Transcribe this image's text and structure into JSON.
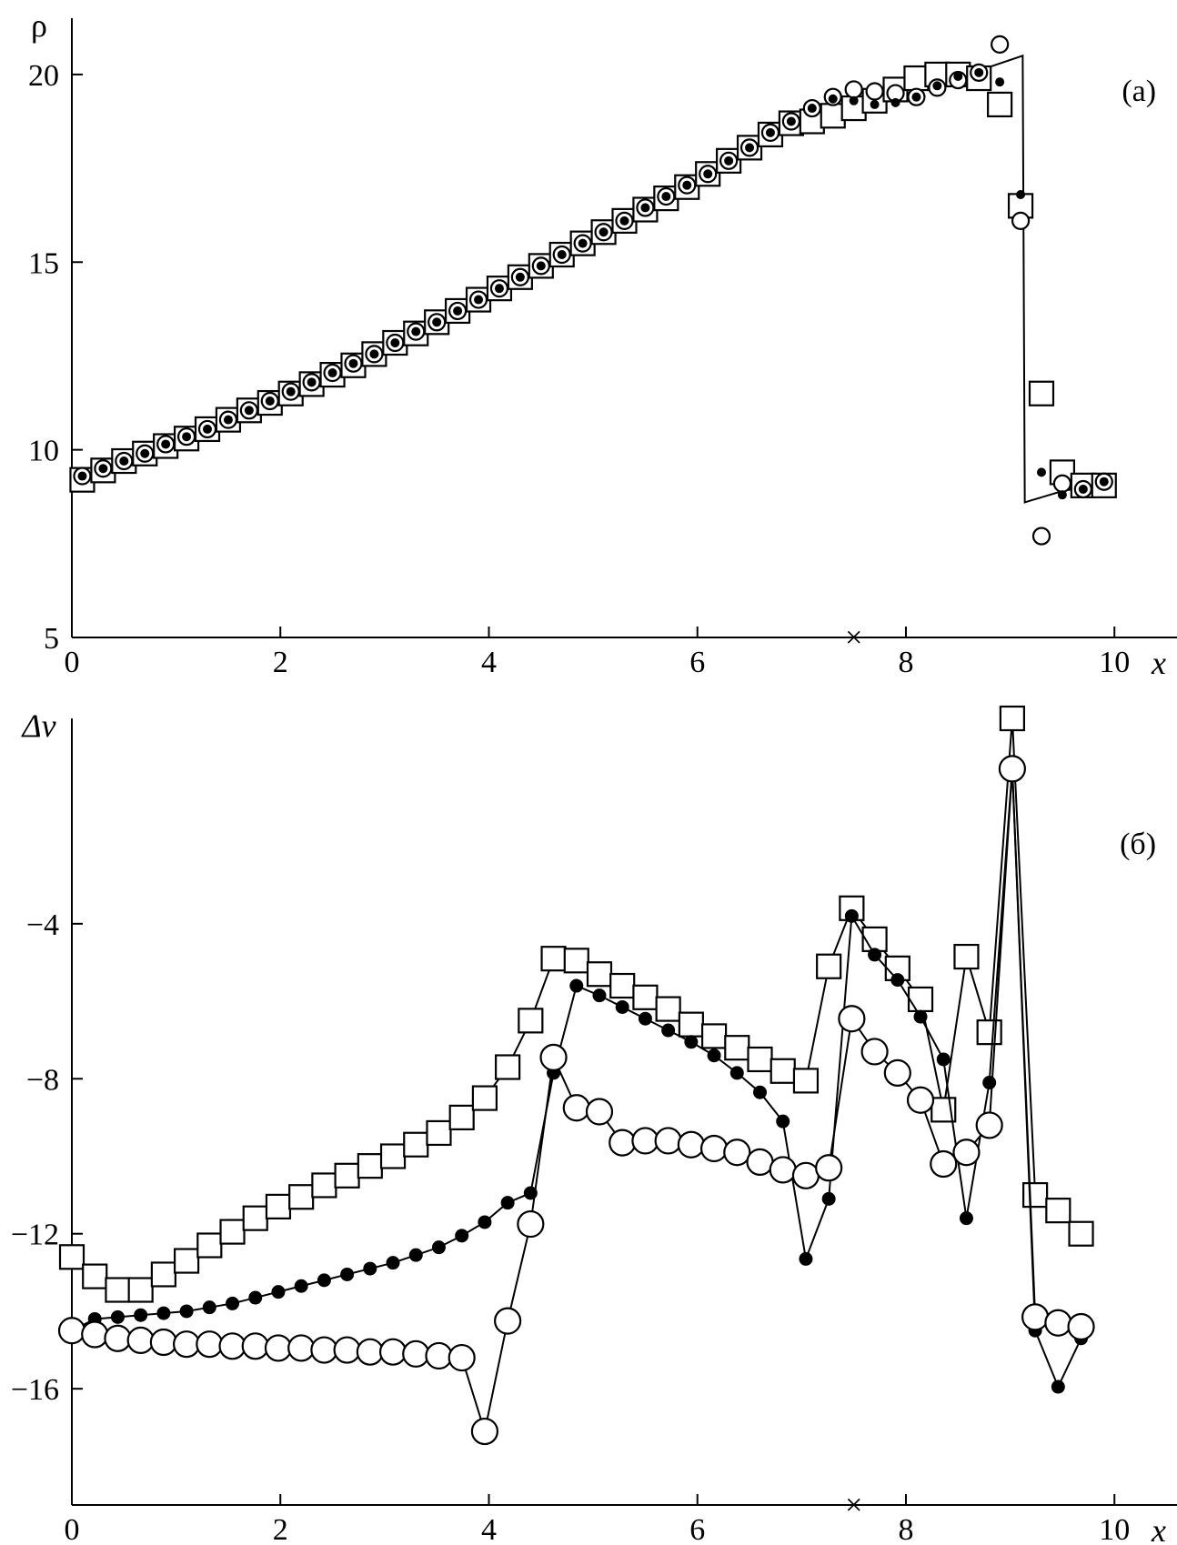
{
  "chart_data": [
    {
      "type": "line",
      "panel_label": "(а)",
      "ylabel": "ρ",
      "xlabel": "x",
      "xlim": [
        0,
        10.6
      ],
      "ylim": [
        5,
        21.5
      ],
      "xticks": [
        0,
        2,
        4,
        6,
        8,
        10
      ],
      "yticks": [
        5,
        10,
        15,
        20
      ],
      "xtick_labels": [
        "0",
        "2",
        "4",
        "6",
        "8",
        "10"
      ],
      "ytick_labels": [
        "5",
        "10",
        "15",
        "20"
      ],
      "marker_x": 7.5,
      "marker_x_symbol": "×",
      "grid": false,
      "series": [
        {
          "style": "line",
          "x": [
            0.1,
            1.0,
            2.0,
            3.0,
            4.0,
            5.0,
            6.0,
            7.0,
            7.5,
            8.0,
            8.5,
            8.8,
            9.12,
            9.14,
            9.2,
            9.5,
            9.9
          ],
          "y": [
            9.25,
            10.2,
            11.4,
            12.7,
            14.1,
            15.6,
            17.2,
            18.9,
            19.5,
            19.6,
            19.9,
            20.2,
            20.5,
            8.6,
            8.65,
            8.9,
            9.1
          ]
        },
        {
          "style": "square",
          "x": [
            0.1,
            0.3,
            0.5,
            0.7,
            0.9,
            1.1,
            1.3,
            1.5,
            1.7,
            1.9,
            2.1,
            2.3,
            2.5,
            2.7,
            2.9,
            3.1,
            3.3,
            3.5,
            3.7,
            3.9,
            4.1,
            4.3,
            4.5,
            4.7,
            4.9,
            5.1,
            5.3,
            5.5,
            5.7,
            5.9,
            6.1,
            6.3,
            6.5,
            6.7,
            6.9,
            7.1,
            7.3,
            7.5,
            7.7,
            7.9,
            8.1,
            8.3,
            8.5,
            8.7,
            8.9,
            9.1,
            9.3,
            9.5,
            9.7,
            9.9
          ],
          "y": [
            9.2,
            9.45,
            9.7,
            9.9,
            10.1,
            10.3,
            10.55,
            10.8,
            11.05,
            11.25,
            11.5,
            11.75,
            12.0,
            12.25,
            12.55,
            12.85,
            13.1,
            13.4,
            13.7,
            14.0,
            14.3,
            14.6,
            14.9,
            15.2,
            15.5,
            15.8,
            16.1,
            16.4,
            16.7,
            17.0,
            17.35,
            17.7,
            18.05,
            18.4,
            18.7,
            18.75,
            18.9,
            19.1,
            19.3,
            19.6,
            19.9,
            20.0,
            20.0,
            19.9,
            19.2,
            16.5,
            11.5,
            9.4,
            9.05,
            9.05
          ]
        },
        {
          "style": "circle",
          "x": [
            0.1,
            0.3,
            0.5,
            0.7,
            0.9,
            1.1,
            1.3,
            1.5,
            1.7,
            1.9,
            2.1,
            2.3,
            2.5,
            2.7,
            2.9,
            3.1,
            3.3,
            3.5,
            3.7,
            3.9,
            4.1,
            4.3,
            4.5,
            4.7,
            4.9,
            5.1,
            5.3,
            5.5,
            5.7,
            5.9,
            6.1,
            6.3,
            6.5,
            6.7,
            6.9,
            7.1,
            7.3,
            7.5,
            7.7,
            7.9,
            8.1,
            8.3,
            8.5,
            8.7,
            8.9,
            9.1,
            9.3,
            9.5,
            9.7,
            9.9
          ],
          "y": [
            9.3,
            9.5,
            9.7,
            9.9,
            10.15,
            10.35,
            10.55,
            10.8,
            11.05,
            11.3,
            11.55,
            11.8,
            12.05,
            12.3,
            12.55,
            12.85,
            13.15,
            13.4,
            13.7,
            14.0,
            14.3,
            14.6,
            14.9,
            15.2,
            15.5,
            15.8,
            16.1,
            16.45,
            16.75,
            17.05,
            17.35,
            17.7,
            18.05,
            18.45,
            18.75,
            19.1,
            19.4,
            19.6,
            19.55,
            19.5,
            19.4,
            19.65,
            19.85,
            20.05,
            20.8,
            16.1,
            7.7,
            9.1,
            8.95,
            9.15
          ]
        },
        {
          "style": "dot",
          "x": [
            0.1,
            0.3,
            0.5,
            0.7,
            0.9,
            1.1,
            1.3,
            1.5,
            1.7,
            1.9,
            2.1,
            2.3,
            2.5,
            2.7,
            2.9,
            3.1,
            3.3,
            3.5,
            3.7,
            3.9,
            4.1,
            4.3,
            4.5,
            4.7,
            4.9,
            5.1,
            5.3,
            5.5,
            5.7,
            5.9,
            6.1,
            6.3,
            6.5,
            6.7,
            6.9,
            7.1,
            7.3,
            7.5,
            7.7,
            7.9,
            8.1,
            8.3,
            8.5,
            8.7,
            8.9,
            9.1,
            9.3,
            9.5,
            9.7,
            9.9
          ],
          "y": [
            9.3,
            9.5,
            9.7,
            9.9,
            10.15,
            10.35,
            10.55,
            10.8,
            11.05,
            11.3,
            11.55,
            11.8,
            12.05,
            12.3,
            12.55,
            12.85,
            13.15,
            13.4,
            13.7,
            14.0,
            14.3,
            14.6,
            14.9,
            15.2,
            15.5,
            15.8,
            16.1,
            16.45,
            16.75,
            17.05,
            17.35,
            17.7,
            18.05,
            18.45,
            18.75,
            19.1,
            19.35,
            19.3,
            19.2,
            19.25,
            19.4,
            19.7,
            19.95,
            20.05,
            19.8,
            16.8,
            9.4,
            8.8,
            8.95,
            9.15
          ]
        }
      ]
    },
    {
      "type": "line",
      "panel_label": "(б)",
      "ylabel": "Δv",
      "xlabel": "x",
      "xlim": [
        0,
        10.6
      ],
      "ylim": [
        -19,
        1.3
      ],
      "xticks": [
        0,
        2,
        4,
        6,
        8,
        10
      ],
      "yticks": [
        -16,
        -12,
        -8,
        -4
      ],
      "xtick_labels": [
        "0",
        "2",
        "4",
        "6",
        "8",
        "10"
      ],
      "ytick_labels": [
        "−16",
        "−12",
        "−8",
        "−4"
      ],
      "marker_x": 7.5,
      "marker_x_symbol": "×",
      "grid": false,
      "series": [
        {
          "style": "square",
          "x": [
            0.0,
            0.22,
            0.44,
            0.66,
            0.88,
            1.1,
            1.32,
            1.54,
            1.76,
            1.98,
            2.2,
            2.42,
            2.64,
            2.86,
            3.08,
            3.3,
            3.52,
            3.74,
            3.96,
            4.18,
            4.4,
            4.62,
            4.84,
            5.06,
            5.28,
            5.5,
            5.72,
            5.94,
            6.16,
            6.38,
            6.6,
            6.82,
            7.04,
            7.26,
            7.48,
            7.7,
            7.92,
            8.14,
            8.36,
            8.58,
            8.8,
            9.02,
            9.24,
            9.46,
            9.68
          ],
          "y": [
            -12.6,
            -13.1,
            -13.45,
            -13.45,
            -13.05,
            -12.7,
            -12.3,
            -11.95,
            -11.6,
            -11.3,
            -11.05,
            -10.75,
            -10.5,
            -10.25,
            -10.0,
            -9.7,
            -9.4,
            -9.0,
            -8.5,
            -7.7,
            -6.5,
            -4.9,
            -4.95,
            -5.3,
            -5.6,
            -5.9,
            -6.2,
            -6.6,
            -6.9,
            -7.2,
            -7.5,
            -7.8,
            -8.05,
            -5.1,
            -3.6,
            -4.4,
            -5.15,
            -5.95,
            -8.8,
            -4.85,
            -6.8,
            1.3,
            -11.0,
            -11.4,
            -12.0
          ]
        },
        {
          "style": "dot",
          "x": [
            0.0,
            0.22,
            0.44,
            0.66,
            0.88,
            1.1,
            1.32,
            1.54,
            1.76,
            1.98,
            2.2,
            2.42,
            2.64,
            2.86,
            3.08,
            3.3,
            3.52,
            3.74,
            3.96,
            4.18,
            4.4,
            4.62,
            4.84,
            5.06,
            5.28,
            5.5,
            5.72,
            5.94,
            6.16,
            6.38,
            6.6,
            6.82,
            7.04,
            7.26,
            7.48,
            7.7,
            7.92,
            8.14,
            8.36,
            8.58,
            8.8,
            9.02,
            9.24,
            9.46,
            9.68
          ],
          "y": [
            -14.5,
            -14.2,
            -14.15,
            -14.1,
            -14.05,
            -14.0,
            -13.9,
            -13.8,
            -13.65,
            -13.5,
            -13.35,
            -13.2,
            -13.05,
            -12.9,
            -12.75,
            -12.55,
            -12.35,
            -12.05,
            -11.7,
            -11.2,
            -10.95,
            -7.85,
            -5.6,
            -5.85,
            -6.15,
            -6.45,
            -6.75,
            -7.05,
            -7.4,
            -7.85,
            -8.35,
            -9.1,
            -12.65,
            -11.1,
            -3.8,
            -4.8,
            -5.45,
            -6.4,
            -7.5,
            -11.6,
            -8.1,
            0.0,
            -14.5,
            -15.95,
            -14.7
          ]
        },
        {
          "style": "circle",
          "x": [
            0.0,
            0.22,
            0.44,
            0.66,
            0.88,
            1.1,
            1.32,
            1.54,
            1.76,
            1.98,
            2.2,
            2.42,
            2.64,
            2.86,
            3.08,
            3.3,
            3.52,
            3.74,
            3.96,
            4.18,
            4.4,
            4.62,
            4.84,
            5.06,
            5.28,
            5.5,
            5.72,
            5.94,
            6.16,
            6.38,
            6.6,
            6.82,
            7.04,
            7.26,
            7.48,
            7.7,
            7.92,
            8.14,
            8.36,
            8.58,
            8.8,
            9.02,
            9.24,
            9.46,
            9.68
          ],
          "y": [
            -14.5,
            -14.6,
            -14.7,
            -14.75,
            -14.8,
            -14.85,
            -14.85,
            -14.9,
            -14.9,
            -14.95,
            -14.95,
            -15.0,
            -15.0,
            -15.05,
            -15.05,
            -15.1,
            -15.15,
            -15.2,
            -17.1,
            -14.25,
            -11.75,
            -7.45,
            -8.75,
            -8.85,
            -9.65,
            -9.6,
            -9.6,
            -9.7,
            -9.8,
            -9.9,
            -10.15,
            -10.35,
            -10.5,
            -10.3,
            -6.45,
            -7.3,
            -7.85,
            -8.55,
            -10.2,
            -9.9,
            -9.2,
            0.0,
            -14.15,
            -14.3,
            -14.4
          ]
        }
      ]
    }
  ]
}
